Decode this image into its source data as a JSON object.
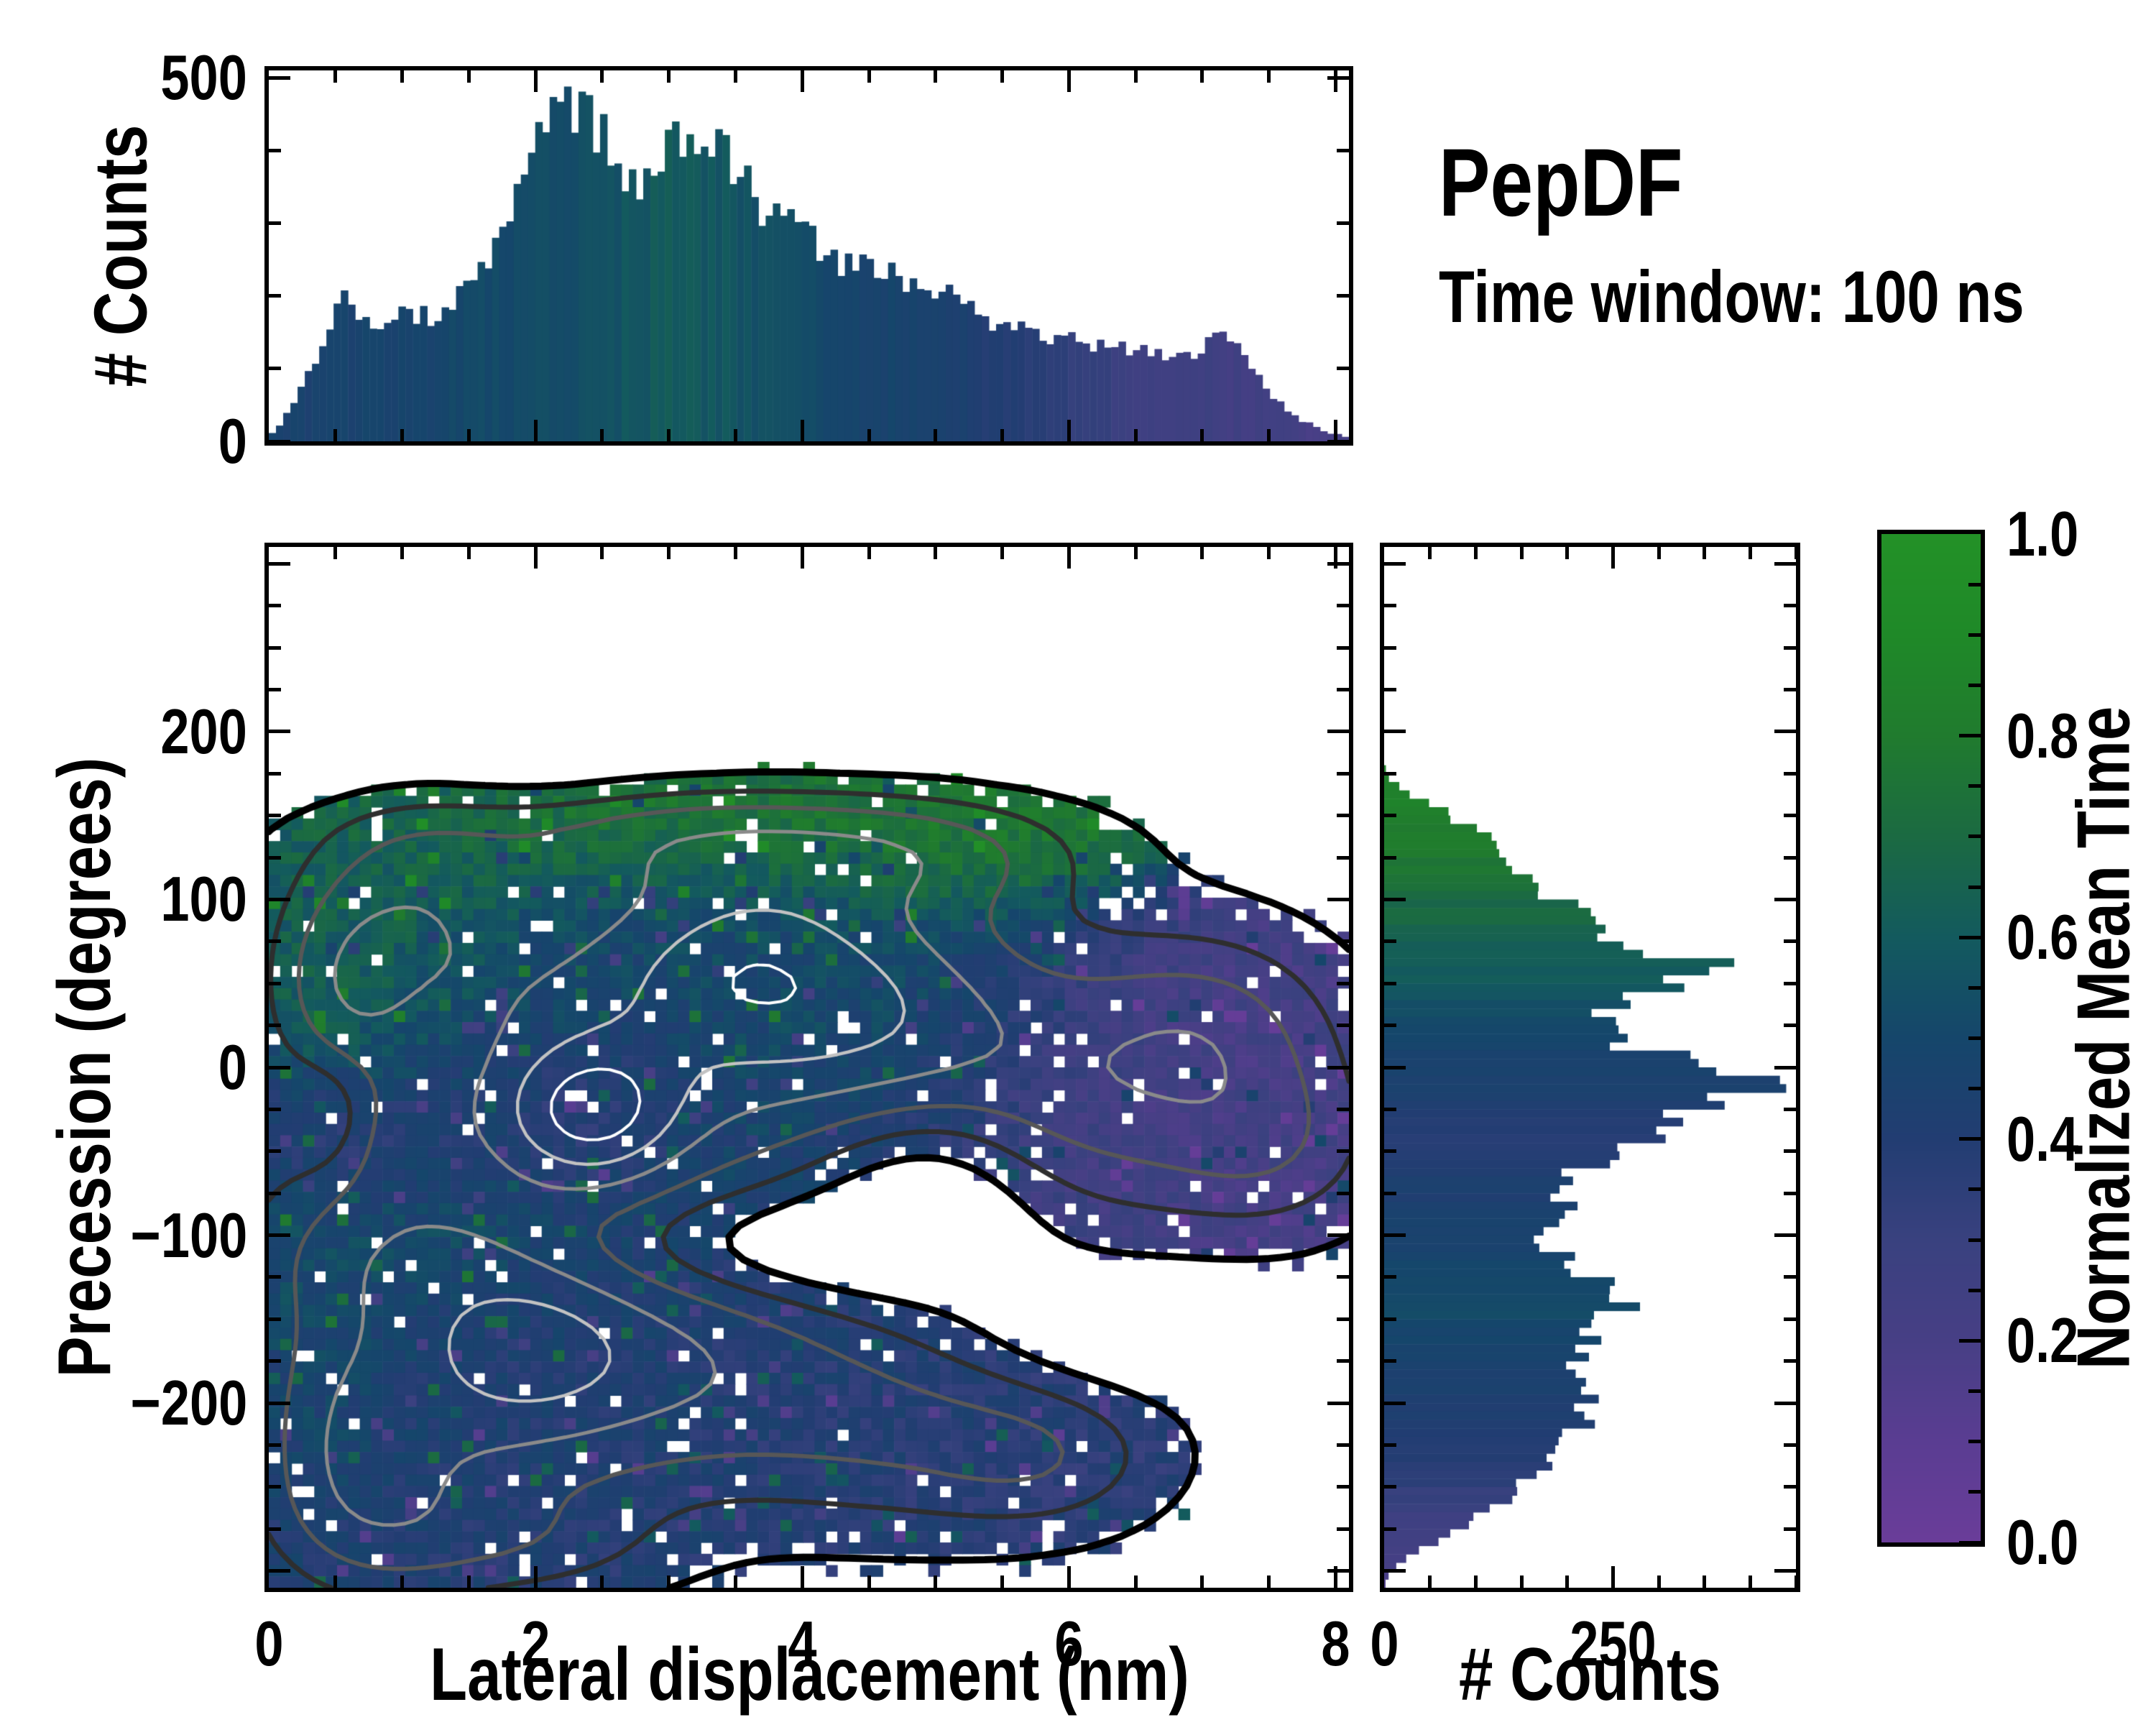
{
  "annotation": {
    "title": "PepDF",
    "subtitle": "Time window: 100 ns"
  },
  "chart_data": {
    "type": "heatmap",
    "title": "PepDF",
    "subtitle": "Time window: 100 ns",
    "seed": 7,
    "colormap": {
      "label": "Normalized Mean Time",
      "lim": [
        0.0,
        1.0
      ],
      "tick_values": [
        1.0,
        0.8,
        0.6,
        0.4,
        0.2,
        0.0
      ],
      "tick_labels": [
        "1.0",
        "0.8",
        "0.6",
        "0.4",
        "0.2",
        "0.0"
      ],
      "major_step": 0.2,
      "minor_step": 0.05,
      "stops": [
        [
          0.0,
          "#6a3d99"
        ],
        [
          0.1,
          "#5a3d92"
        ],
        [
          0.2,
          "#473f85"
        ],
        [
          0.3,
          "#39417f"
        ],
        [
          0.4,
          "#223d72"
        ],
        [
          0.5,
          "#15466b"
        ],
        [
          0.6,
          "#135a5e"
        ],
        [
          0.7,
          "#1b6a42"
        ],
        [
          0.8,
          "#207b2e"
        ],
        [
          0.9,
          "#1f8928"
        ],
        [
          1.0,
          "#239127"
        ]
      ]
    },
    "main": {
      "type": "heatmap",
      "xlabel": "Lateral displacement (nm)",
      "ylabel": "Precession (degrees)",
      "xlim": [
        0,
        8.1
      ],
      "ylim": [
        -310,
        310
      ],
      "xtick_values": [
        0,
        2,
        4,
        6,
        8
      ],
      "xtick_labels": [
        "0",
        "2",
        "4",
        "6",
        "8"
      ],
      "ytick_values": [
        200,
        100,
        0,
        -100,
        -200
      ],
      "ytick_labels": [
        "200",
        "100",
        "0",
        "−100",
        "−200"
      ],
      "x_major_step": 2,
      "x_minor_step": 0.5,
      "y_major_step": 100,
      "y_minor_step": 25,
      "grid": [
        95,
        92
      ],
      "presence_threshold": 0.18,
      "edge_noise": 0.14,
      "value_noise": 0.15,
      "hole_fraction": 0.045,
      "hole_fraction_edge": 0.1,
      "speckle_fraction": 0.07,
      "speckle_delta": 0.22,
      "contour_levels": [
        0.18,
        0.55,
        0.95,
        1.45,
        2.0,
        2.6
      ],
      "contour_colors": [
        "#000000",
        "#2e2e2e",
        "#575757",
        "#8a8a8a",
        "#c2c2c2",
        "#ffffff"
      ],
      "contour_widths": [
        10,
        7,
        6,
        5,
        4.5,
        4
      ],
      "regions": [
        [
          1.05,
          95,
          0.6,
          52,
          0.95,
          0.66
        ],
        [
          0.55,
          45,
          0.35,
          38,
          0.7,
          0.66
        ],
        [
          3.2,
          138,
          1.1,
          26,
          0.85,
          0.85
        ],
        [
          5.0,
          128,
          0.85,
          26,
          0.75,
          0.85
        ],
        [
          3.0,
          15,
          1.5,
          72,
          1.5,
          0.48
        ],
        [
          3.9,
          62,
          1.05,
          46,
          0.9,
          0.52
        ],
        [
          6.2,
          -15,
          1.05,
          55,
          1.05,
          0.22
        ],
        [
          7.1,
          25,
          0.65,
          40,
          0.7,
          0.22
        ],
        [
          0.8,
          -40,
          0.55,
          30,
          0.7,
          0.3
        ],
        [
          1.0,
          -110,
          0.9,
          35,
          0.9,
          0.56
        ],
        [
          1.5,
          -195,
          1.05,
          58,
          1.15,
          0.42
        ],
        [
          1.9,
          -168,
          0.5,
          26,
          0.7,
          0.4
        ],
        [
          0.8,
          -268,
          0.6,
          38,
          0.85,
          0.4
        ],
        [
          3.0,
          -168,
          1.05,
          52,
          1.05,
          0.4
        ],
        [
          4.8,
          -215,
          1.0,
          42,
          0.85,
          0.38
        ],
        [
          5.85,
          -235,
          0.6,
          28,
          0.55,
          0.36
        ],
        [
          2.4,
          -28,
          0.45,
          28,
          1.7,
          0.3
        ],
        [
          3.6,
          62,
          0.5,
          28,
          0.45,
          0.5
        ],
        [
          7.55,
          -48,
          0.55,
          35,
          0.6,
          0.22
        ],
        [
          0.5,
          -205,
          0.38,
          45,
          0.5,
          0.58
        ],
        [
          4.6,
          25,
          0.7,
          38,
          0.5,
          0.6
        ],
        [
          2.0,
          -285,
          0.7,
          22,
          0.45,
          0.38
        ],
        [
          3.7,
          -108,
          1.0,
          26,
          -0.75,
          0
        ],
        [
          4.95,
          -62,
          0.65,
          38,
          -0.7,
          0
        ],
        [
          0.45,
          -30,
          0.28,
          26,
          -0.75,
          0
        ],
        [
          6.3,
          -158,
          0.8,
          24,
          -0.4,
          0
        ],
        [
          2.0,
          175,
          2.6,
          16,
          -0.35,
          0
        ]
      ]
    },
    "top_hist": {
      "type": "bar",
      "ylabel": "# Counts",
      "ylim": [
        0,
        510
      ],
      "ytick_values": [
        500,
        0
      ],
      "ytick_labels": [
        "500",
        "0"
      ],
      "y_major_step": 500,
      "y_minor_step": 100,
      "n_bins": 150,
      "jitter": 0.2,
      "envelope": [
        [
          0,
          4
        ],
        [
          0.15,
          40
        ],
        [
          0.3,
          95
        ],
        [
          0.45,
          150
        ],
        [
          0.55,
          205
        ],
        [
          0.62,
          195
        ],
        [
          0.7,
          180
        ],
        [
          0.8,
          158
        ],
        [
          0.9,
          166
        ],
        [
          1.0,
          172
        ],
        [
          1.1,
          178
        ],
        [
          1.2,
          172
        ],
        [
          1.35,
          188
        ],
        [
          1.5,
          212
        ],
        [
          1.65,
          248
        ],
        [
          1.8,
          300
        ],
        [
          1.9,
          335
        ],
        [
          2.0,
          395
        ],
        [
          2.1,
          448
        ],
        [
          2.2,
          462
        ],
        [
          2.3,
          468
        ],
        [
          2.35,
          450
        ],
        [
          2.45,
          430
        ],
        [
          2.55,
          400
        ],
        [
          2.65,
          358
        ],
        [
          2.75,
          348
        ],
        [
          2.85,
          342
        ],
        [
          2.95,
          398
        ],
        [
          3.05,
          420
        ],
        [
          3.15,
          435
        ],
        [
          3.25,
          428
        ],
        [
          3.35,
          402
        ],
        [
          3.45,
          380
        ],
        [
          3.55,
          352
        ],
        [
          3.65,
          338
        ],
        [
          3.75,
          318
        ],
        [
          3.85,
          305
        ],
        [
          3.95,
          295
        ],
        [
          4.05,
          288
        ],
        [
          4.15,
          270
        ],
        [
          4.25,
          245
        ],
        [
          4.35,
          252
        ],
        [
          4.45,
          240
        ],
        [
          4.55,
          222
        ],
        [
          4.65,
          246
        ],
        [
          4.75,
          228
        ],
        [
          4.85,
          215
        ],
        [
          5.0,
          196
        ],
        [
          5.1,
          205
        ],
        [
          5.2,
          185
        ],
        [
          5.35,
          172
        ],
        [
          5.5,
          162
        ],
        [
          5.65,
          152
        ],
        [
          5.8,
          148
        ],
        [
          6.0,
          138
        ],
        [
          6.15,
          132
        ],
        [
          6.3,
          138
        ],
        [
          6.45,
          130
        ],
        [
          6.6,
          126
        ],
        [
          6.75,
          122
        ],
        [
          6.9,
          120
        ],
        [
          7.0,
          125
        ],
        [
          7.1,
          142
        ],
        [
          7.2,
          138
        ],
        [
          7.3,
          118
        ],
        [
          7.4,
          95
        ],
        [
          7.5,
          65
        ],
        [
          7.6,
          48
        ],
        [
          7.65,
          38
        ],
        [
          7.75,
          28
        ],
        [
          7.85,
          20
        ],
        [
          7.95,
          12
        ],
        [
          8.05,
          8
        ],
        [
          8.1,
          5
        ]
      ],
      "color_profile": [
        [
          0,
          0.45
        ],
        [
          0.6,
          0.46
        ],
        [
          1.2,
          0.49
        ],
        [
          1.8,
          0.52
        ],
        [
          2.2,
          0.54
        ],
        [
          2.6,
          0.57
        ],
        [
          3.0,
          0.6
        ],
        [
          3.4,
          0.58
        ],
        [
          3.8,
          0.54
        ],
        [
          4.2,
          0.51
        ],
        [
          4.6,
          0.48
        ],
        [
          5.0,
          0.45
        ],
        [
          5.4,
          0.41
        ],
        [
          5.8,
          0.37
        ],
        [
          6.2,
          0.31
        ],
        [
          6.6,
          0.27
        ],
        [
          7.0,
          0.25
        ],
        [
          7.4,
          0.23
        ],
        [
          7.8,
          0.21
        ],
        [
          8.1,
          0.2
        ]
      ]
    },
    "right_hist": {
      "type": "barh",
      "xlabel": "# Counts",
      "xlim": [
        0,
        450
      ],
      "xtick_values": [
        0,
        250
      ],
      "xtick_labels": [
        "0",
        "250"
      ],
      "x_major_step": 250,
      "x_minor_step": 50,
      "n_bins": 124,
      "jitter": 0.22,
      "envelope": [
        [
          -310,
          0
        ],
        [
          -305,
          3
        ],
        [
          -300,
          8
        ],
        [
          -295,
          18
        ],
        [
          -290,
          32
        ],
        [
          -285,
          48
        ],
        [
          -280,
          65
        ],
        [
          -275,
          82
        ],
        [
          -270,
          98
        ],
        [
          -265,
          112
        ],
        [
          -260,
          125
        ],
        [
          -255,
          138
        ],
        [
          -250,
          148
        ],
        [
          -245,
          158
        ],
        [
          -240,
          165
        ],
        [
          -235,
          172
        ],
        [
          -230,
          182
        ],
        [
          -225,
          188
        ],
        [
          -220,
          198
        ],
        [
          -215,
          208
        ],
        [
          -210,
          218
        ],
        [
          -205,
          228
        ],
        [
          -200,
          238
        ],
        [
          -195,
          232
        ],
        [
          -190,
          225
        ],
        [
          -185,
          218
        ],
        [
          -180,
          212
        ],
        [
          -175,
          215
        ],
        [
          -170,
          222
        ],
        [
          -165,
          218
        ],
        [
          -160,
          230
        ],
        [
          -155,
          225
        ],
        [
          -150,
          240
        ],
        [
          -145,
          262
        ],
        [
          -140,
          276
        ],
        [
          -135,
          258
        ],
        [
          -130,
          242
        ],
        [
          -125,
          228
        ],
        [
          -120,
          215
        ],
        [
          -115,
          200
        ],
        [
          -110,
          185
        ],
        [
          -105,
          178
        ],
        [
          -100,
          168
        ],
        [
          -95,
          172
        ],
        [
          -90,
          182
        ],
        [
          -85,
          190
        ],
        [
          -80,
          205
        ],
        [
          -75,
          195
        ],
        [
          -70,
          208
        ],
        [
          -65,
          200
        ],
        [
          -60,
          215
        ],
        [
          -55,
          232
        ],
        [
          -50,
          248
        ],
        [
          -45,
          270
        ],
        [
          -40,
          288
        ],
        [
          -35,
          295
        ],
        [
          -30,
          310
        ],
        [
          -26,
          330
        ],
        [
          -22,
          345
        ],
        [
          -18,
          372
        ],
        [
          -14,
          395
        ],
        [
          -10,
          432
        ],
        [
          -6,
          412
        ],
        [
          -2,
          370
        ],
        [
          2,
          345
        ],
        [
          6,
          310
        ],
        [
          10,
          288
        ],
        [
          14,
          270
        ],
        [
          18,
          252
        ],
        [
          22,
          232
        ],
        [
          26,
          228
        ],
        [
          30,
          240
        ],
        [
          34,
          235
        ],
        [
          38,
          248
        ],
        [
          42,
          265
        ],
        [
          46,
          300
        ],
        [
          50,
          322
        ],
        [
          54,
          305
        ],
        [
          58,
          330
        ],
        [
          62,
          355
        ],
        [
          66,
          320
        ],
        [
          70,
          295
        ],
        [
          76,
          262
        ],
        [
          82,
          248
        ],
        [
          88,
          225
        ],
        [
          94,
          205
        ],
        [
          100,
          190
        ],
        [
          106,
          168
        ],
        [
          112,
          155
        ],
        [
          118,
          142
        ],
        [
          124,
          150
        ],
        [
          130,
          135
        ],
        [
          136,
          118
        ],
        [
          143,
          95
        ],
        [
          150,
          72
        ],
        [
          158,
          45
        ],
        [
          165,
          20
        ],
        [
          172,
          6
        ],
        [
          180,
          0
        ],
        [
          310,
          0
        ]
      ],
      "color_profile": [
        [
          -310,
          0.16
        ],
        [
          -295,
          0.2
        ],
        [
          -280,
          0.24
        ],
        [
          -260,
          0.3
        ],
        [
          -240,
          0.36
        ],
        [
          -220,
          0.4
        ],
        [
          -200,
          0.43
        ],
        [
          -180,
          0.45
        ],
        [
          -160,
          0.48
        ],
        [
          -140,
          0.52
        ],
        [
          -120,
          0.5
        ],
        [
          -100,
          0.46
        ],
        [
          -80,
          0.44
        ],
        [
          -60,
          0.42
        ],
        [
          -40,
          0.38
        ],
        [
          -25,
          0.4
        ],
        [
          -10,
          0.44
        ],
        [
          0,
          0.46
        ],
        [
          10,
          0.48
        ],
        [
          25,
          0.52
        ],
        [
          40,
          0.56
        ],
        [
          55,
          0.6
        ],
        [
          70,
          0.63
        ],
        [
          85,
          0.67
        ],
        [
          100,
          0.7
        ],
        [
          115,
          0.75
        ],
        [
          130,
          0.8
        ],
        [
          150,
          0.83
        ],
        [
          172,
          0.85
        ]
      ]
    }
  }
}
